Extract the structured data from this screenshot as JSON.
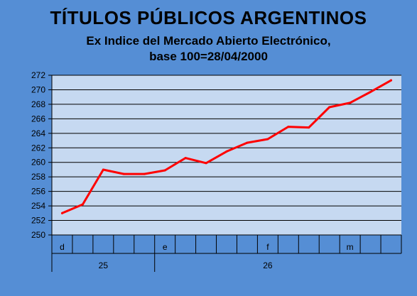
{
  "chart_data": {
    "type": "line",
    "title": "TÍTULOS PÚBLICOS ARGENTINOS",
    "subtitle_line1": "Ex Indice del Mercado Abierto Electrónico,",
    "subtitle_line2": "base 100=28/04/2000",
    "ylim": [
      250,
      272
    ],
    "yticks": [
      "250",
      "252",
      "254",
      "256",
      "258",
      "260",
      "262",
      "264",
      "266",
      "268",
      "270",
      "272"
    ],
    "grid": true,
    "month_labels": [
      {
        "label": "d",
        "slot": 0
      },
      {
        "label": "e",
        "slot": 5
      },
      {
        "label": "f",
        "slot": 10
      },
      {
        "label": "m",
        "slot": 14
      }
    ],
    "year_labels": [
      {
        "label": "25",
        "start": 0,
        "end": 5
      },
      {
        "label": "26",
        "start": 5,
        "end": 16
      }
    ],
    "series": [
      {
        "color": "#ff0000",
        "values": [
          253.0,
          254.2,
          259.0,
          258.4,
          258.4,
          258.9,
          260.6,
          259.9,
          261.5,
          262.7,
          263.2,
          264.9,
          264.8,
          267.6,
          268.2,
          269.7,
          271.3
        ]
      }
    ]
  }
}
